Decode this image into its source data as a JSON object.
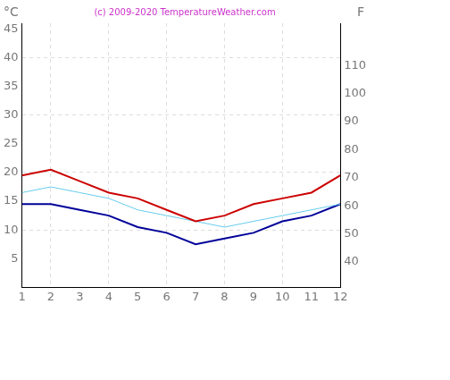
{
  "chart_data": {
    "type": "line",
    "title": "(c) 2009-2020 TemperatureWeather.com",
    "ylabel": "°C",
    "y2label": "F",
    "x": [
      1,
      2,
      3,
      4,
      5,
      6,
      7,
      8,
      9,
      10,
      11,
      12
    ],
    "xlim": [
      1,
      12
    ],
    "xticks": [
      1,
      2,
      3,
      4,
      5,
      6,
      7,
      8,
      9,
      10,
      11,
      12
    ],
    "ylim": [
      0,
      46
    ],
    "yticks": [
      5,
      10,
      15,
      20,
      25,
      30,
      35,
      40,
      45
    ],
    "y2lim": [
      31,
      125
    ],
    "y2ticks": [
      40,
      50,
      60,
      70,
      80,
      90,
      100,
      110
    ],
    "grid": true,
    "series": [
      {
        "color": "#cc0000",
        "values": [
          19.5,
          20.5,
          18.5,
          16.5,
          15.5,
          13.5,
          11.5,
          12.5,
          14.5,
          15.5,
          16.5,
          19.5
        ]
      },
      {
        "color": "#66ccee",
        "values": [
          16.5,
          17.5,
          16.5,
          15.5,
          13.5,
          12.5,
          11.5,
          10.5,
          11.5,
          12.5,
          13.5,
          14.5
        ]
      },
      {
        "color": "#000099",
        "values": [
          14.5,
          14.5,
          13.5,
          12.5,
          10.5,
          9.5,
          7.5,
          8.5,
          9.5,
          11.5,
          12.5,
          14.5
        ]
      }
    ]
  }
}
